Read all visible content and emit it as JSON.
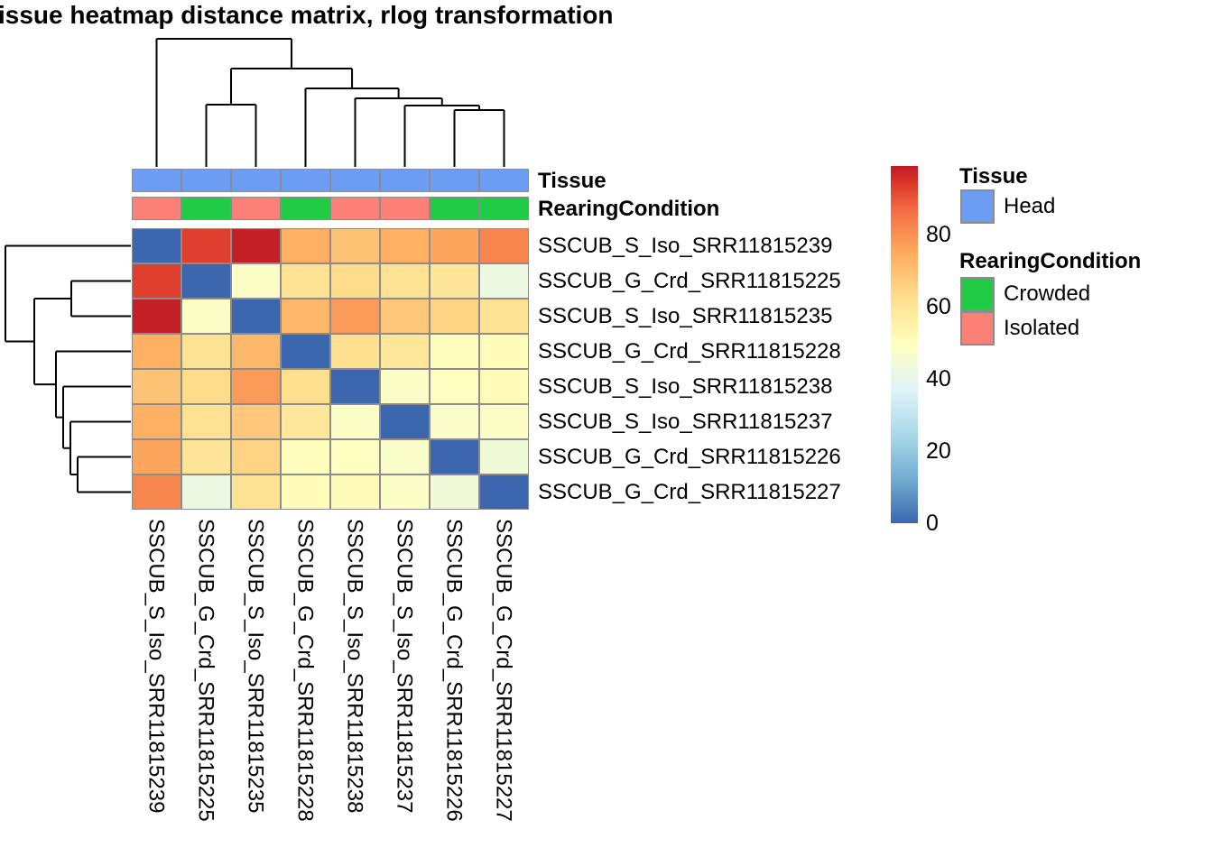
{
  "title": "issue heatmap distance matrix, rlog transformation",
  "annotation_rows": {
    "tissue_label": "Tissue",
    "rearing_label": "RearingCondition"
  },
  "legend": {
    "tissue_header": "Tissue",
    "tissue_items": [
      {
        "label": "Head",
        "color": "#6D9CF3"
      }
    ],
    "rearing_header": "RearingCondition",
    "rearing_items": [
      {
        "label": "Crowded",
        "color": "#21CB45"
      },
      {
        "label": "Isolated",
        "color": "#FA8078"
      }
    ]
  },
  "chart_data": {
    "type": "heatmap",
    "title": "issue heatmap distance matrix, rlog transformation",
    "rows": [
      "SSCUB_S_Iso_SRR11815239",
      "SSCUB_G_Crd_SRR11815225",
      "SSCUB_S_Iso_SRR11815235",
      "SSCUB_G_Crd_SRR11815228",
      "SSCUB_S_Iso_SRR11815238",
      "SSCUB_S_Iso_SRR11815237",
      "SSCUB_G_Crd_SRR11815226",
      "SSCUB_G_Crd_SRR11815227"
    ],
    "columns": [
      "SSCUB_S_Iso_SRR11815239",
      "SSCUB_G_Crd_SRR11815225",
      "SSCUB_S_Iso_SRR11815235",
      "SSCUB_G_Crd_SRR11815228",
      "SSCUB_S_Iso_SRR11815238",
      "SSCUB_S_Iso_SRR11815237",
      "SSCUB_G_Crd_SRR11815226",
      "SSCUB_G_Crd_SRR11815227"
    ],
    "values": [
      [
        0,
        93,
        98,
        74,
        69,
        74,
        76,
        82
      ],
      [
        93,
        0,
        48,
        61,
        63,
        61,
        60,
        42
      ],
      [
        98,
        48,
        0,
        72,
        78,
        68,
        65,
        61
      ],
      [
        74,
        61,
        72,
        0,
        62,
        59,
        50,
        51
      ],
      [
        69,
        63,
        78,
        62,
        0,
        48,
        49,
        51
      ],
      [
        74,
        61,
        68,
        59,
        48,
        0,
        47,
        48
      ],
      [
        76,
        60,
        65,
        50,
        49,
        47,
        0,
        44
      ],
      [
        82,
        42,
        61,
        51,
        51,
        48,
        44,
        0
      ]
    ],
    "colorbar": {
      "min": 0,
      "max": 99,
      "ticks": [
        80,
        60,
        40,
        20,
        0
      ],
      "palette": [
        {
          "v": 0,
          "color": "#3C66AE"
        },
        {
          "v": 12.4,
          "color": "#74ADD1"
        },
        {
          "v": 24.8,
          "color": "#ABD9E9"
        },
        {
          "v": 37.1,
          "color": "#E0F3F8"
        },
        {
          "v": 49.5,
          "color": "#FFFFBF"
        },
        {
          "v": 61.9,
          "color": "#FEE090"
        },
        {
          "v": 74.3,
          "color": "#FDAE61"
        },
        {
          "v": 86.6,
          "color": "#F46D43"
        },
        {
          "v": 95,
          "color": "#D73027"
        },
        {
          "v": 99,
          "color": "#BE1A27"
        }
      ]
    },
    "column_annotations": {
      "Tissue": [
        "Head",
        "Head",
        "Head",
        "Head",
        "Head",
        "Head",
        "Head",
        "Head"
      ],
      "RearingCondition": [
        "Isolated",
        "Crowded",
        "Isolated",
        "Crowded",
        "Isolated",
        "Isolated",
        "Crowded",
        "Crowded"
      ]
    },
    "annotation_colors": {
      "Head": "#6D9CF3",
      "Crowded": "#21CB45",
      "Isolated": "#FA8078"
    },
    "clustering": {
      "top_merges": [
        {
          "a": "L6",
          "b": "L7",
          "pos": 122
        },
        {
          "a": "L5",
          "b": "M0",
          "pos": 117
        },
        {
          "a": "L4",
          "b": "M1",
          "pos": 109
        },
        {
          "a": "L3",
          "b": "M2",
          "pos": 98
        },
        {
          "a": "L1",
          "b": "L2",
          "pos": 116
        },
        {
          "a": "M4",
          "b": "M3",
          "pos": 76
        },
        {
          "a": "L0",
          "b": "M5",
          "pos": 43
        }
      ],
      "left_merges": [
        {
          "a": "L6",
          "b": "L7",
          "pos": 86
        },
        {
          "a": "L5",
          "b": "M0",
          "pos": 78
        },
        {
          "a": "L4",
          "b": "M1",
          "pos": 70
        },
        {
          "a": "L3",
          "b": "M2",
          "pos": 62
        },
        {
          "a": "L1",
          "b": "L2",
          "pos": 79
        },
        {
          "a": "M4",
          "b": "M3",
          "pos": 38
        },
        {
          "a": "L0",
          "b": "M5",
          "pos": 6
        }
      ]
    },
    "layout_hints": {
      "legend_position": "right",
      "colorbar_position": "right",
      "grid": "on"
    }
  }
}
